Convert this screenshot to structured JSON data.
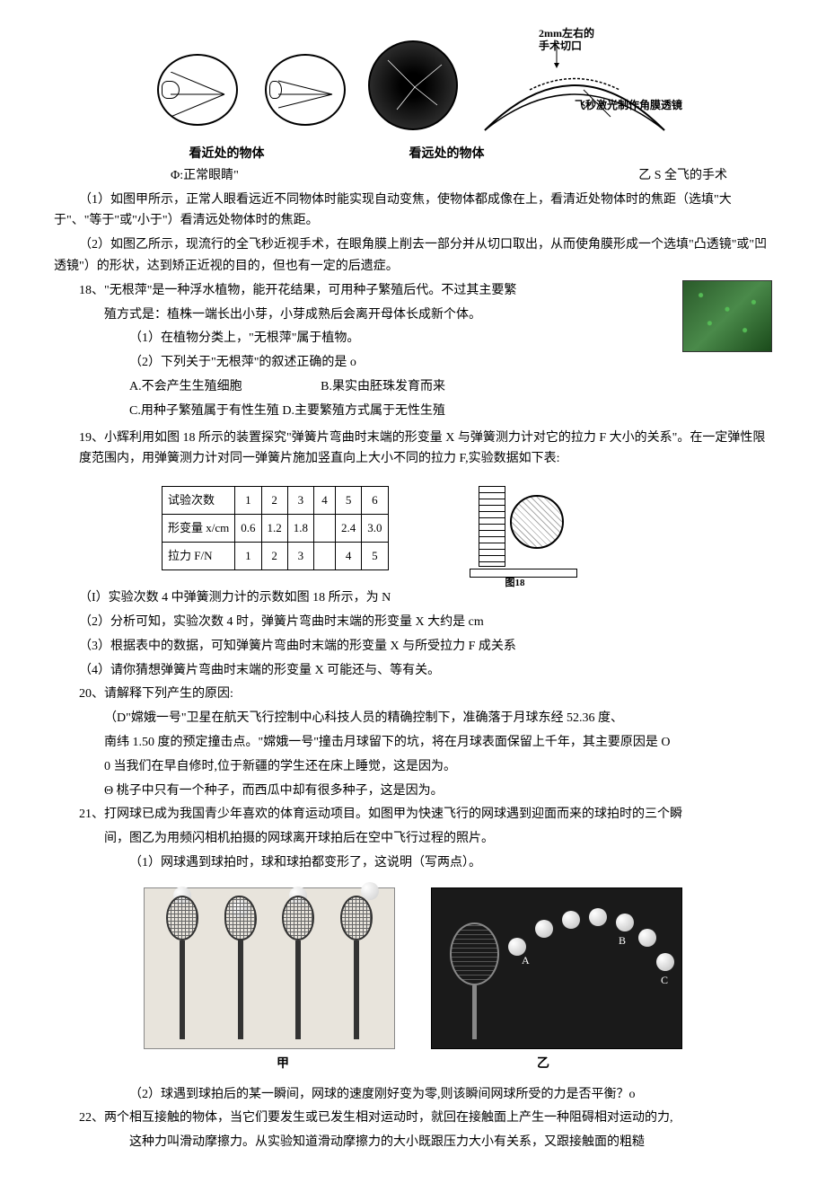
{
  "top_figure": {
    "near_caption": "看近处的物体",
    "far_caption": "看远处的物体",
    "jia_label": "Φ:正常眼睛\"",
    "yi_label": "乙 S 全飞的手术",
    "annotation1": "2mm左右的",
    "annotation2": "手术切口",
    "annotation3": "飞秒激光制作角膜透镜"
  },
  "q17": {
    "p1": "（1）如图甲所示，正常人眼看远近不同物体时能实现自动变焦，使物体都成像在上，看清近处物体时的焦距（选填\"大于\"、\"等于\"或\"小于\"）看清远处物体时的焦距。",
    "p2": "（2）如图乙所示，现流行的全飞秒近视手术，在眼角膜上削去一部分并从切口取出，从而使角膜形成一个选填\"凸透镜\"或\"凹透镜\"）的形状，达到矫正近视的目的，但也有一定的后遗症。"
  },
  "q18": {
    "stem": "18、\"无根萍\"是一种浮水植物，能开花结果，可用种子繁殖后代。不过其主要繁",
    "stem2": "殖方式是：植株一端长出小芽，小芽成熟后会离开母体长成新个体。",
    "sub1": "（1）在植物分类上，\"无根萍\"属于植物。",
    "sub2": "（2）下列关于\"无根萍\"的叙述正确的是 o",
    "optA": "A.不会产生生殖细胞",
    "optB": "B.果实由胚珠发育而来",
    "optC": "C.用种子繁殖属于有性生殖 D.主要繁殖方式属于无性生殖"
  },
  "q19": {
    "stem": "19、小辉利用如图 18 所示的装置探究\"弹簧片弯曲时末端的形变量 X 与弹簧测力计对它的拉力 F 大小的关系\"。在一定弹性限度范围内，用弹簧测力计对同一弹簧片施加竖直向上大小不同的拉力 F,实验数据如下表:",
    "table": {
      "rows": [
        {
          "hdr": "试验次数",
          "cells": [
            "1",
            "2",
            "3",
            "4",
            "5",
            "6"
          ]
        },
        {
          "hdr": "形变量 x/cm",
          "cells": [
            "0.6",
            "1.2",
            "1.8",
            "",
            "2.4",
            "3.0"
          ]
        },
        {
          "hdr": "拉力 F/N",
          "cells": [
            "1",
            "2",
            "3",
            "",
            "4",
            "5"
          ]
        }
      ]
    },
    "device_caption": "图18",
    "sub1": "（I）实验次数 4 中弹簧测力计的示数如图 18 所示，为 N",
    "sub2": "（2）分析可知，实验次数 4 时，弹簧片弯曲时末端的形变量 X 大约是 cm",
    "sub3": "（3）根据表中的数据，可知弹簧片弯曲时末端的形变量 X 与所受拉力 F 成关系",
    "sub4": "（4）请你猜想弹簧片弯曲时末端的形变量 X 可能还与、等有关。"
  },
  "q20": {
    "stem": "20、请解释下列产生的原因:",
    "p1": "（D\"嫦娥一号\"卫星在航天飞行控制中心科技人员的精确控制下，准确落于月球东经 52.36 度、",
    "p2": "南纬 1.50 度的预定撞击点。\"嫦娥一号\"撞击月球留下的坑，将在月球表面保留上千年，其主要原因是 O",
    "p3": "0 当我们在早自修时,位于新疆的学生还在床上睡觉，这是因为。",
    "p4": "Θ 桃子中只有一个种子，而西瓜中却有很多种子，这是因为。"
  },
  "q21": {
    "stem": "21、打网球已成为我国青少年喜欢的体育运动项目。如图甲为快速飞行的网球遇到迎面而来的球拍时的三个瞬",
    "stem2": "间，图乙为用频闪相机拍摄的网球离开球拍后在空中飞行过程的照片。",
    "sub1": "（1）网球遇到球拍时，球和球拍都变形了，这说明（写两点）。",
    "jia_caption": "甲",
    "yi_caption": "乙",
    "ball_labels": {
      "A": "A",
      "B": "B",
      "C": "C"
    },
    "sub2": "（2）球遇到球拍后的某一瞬间，网球的速度刚好变为零,则该瞬间网球所受的力是否平衡？o"
  },
  "q22": {
    "stem": "22、两个相互接触的物体，当它们要发生或已发生相对运动时，就回在接触面上产生一种阻碍相对运动的力,",
    "stem2": "这种力叫滑动摩擦力。从实验知道滑动摩擦力的大小既跟压力大小有关系，又跟接触面的粗糙"
  }
}
